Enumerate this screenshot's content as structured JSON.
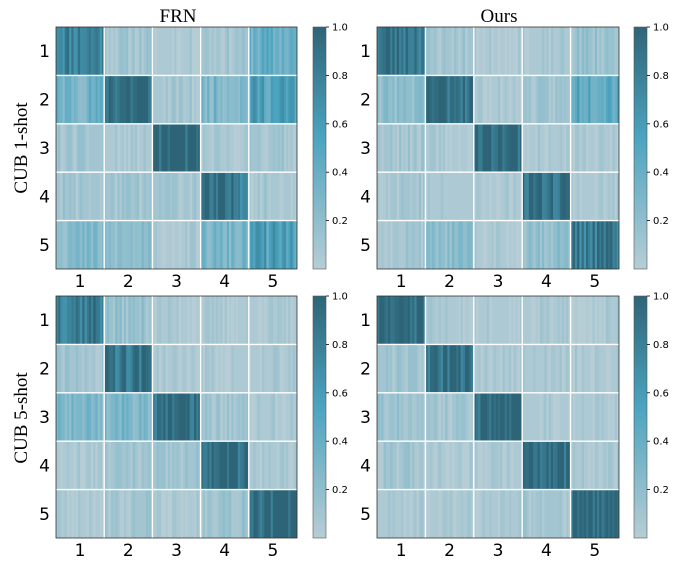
{
  "figure": {
    "column_titles": [
      "FRN",
      "Ours"
    ],
    "row_titles": [
      "CUB 1-shot",
      "CUB 5-shot"
    ]
  },
  "colors": {
    "low": "#b7cdd5",
    "mid": "#4aa3bf",
    "high": "#2e6477",
    "grid": "#ffffff"
  },
  "chart_data": [
    {
      "type": "heatmap",
      "title": "FRN",
      "ylabel": "CUB 1-shot",
      "categories": [
        "1",
        "2",
        "3",
        "4",
        "5"
      ],
      "colorbar": {
        "min": 0,
        "max": 1.0,
        "ticks": [
          "0.2",
          "0.4",
          "0.6",
          "0.8",
          "1.0"
        ]
      },
      "values": [
        [
          0.8,
          0.1,
          0.05,
          0.1,
          0.4
        ],
        [
          0.35,
          0.95,
          0.08,
          0.3,
          0.55
        ],
        [
          0.1,
          0.05,
          1.0,
          0.05,
          0.1
        ],
        [
          0.1,
          0.1,
          0.1,
          0.85,
          0.08
        ],
        [
          0.25,
          0.2,
          0.05,
          0.3,
          0.55
        ]
      ],
      "stripe_seed": 11
    },
    {
      "type": "heatmap",
      "title": "Ours",
      "ylabel": "",
      "categories": [
        "1",
        "2",
        "3",
        "4",
        "5"
      ],
      "colorbar": {
        "min": 0,
        "max": 1.0,
        "ticks": [
          "0.2",
          "0.4",
          "0.6",
          "0.8",
          "1.0"
        ]
      },
      "values": [
        [
          0.9,
          0.1,
          0.05,
          0.05,
          0.15
        ],
        [
          0.2,
          0.95,
          0.05,
          0.1,
          0.5
        ],
        [
          0.1,
          0.05,
          1.0,
          0.05,
          0.05
        ],
        [
          0.1,
          0.05,
          0.05,
          0.95,
          0.05
        ],
        [
          0.1,
          0.2,
          0.05,
          0.2,
          0.85
        ]
      ],
      "stripe_seed": 23
    },
    {
      "type": "heatmap",
      "title": "",
      "ylabel": "CUB 5-shot",
      "categories": [
        "1",
        "2",
        "3",
        "4",
        "5"
      ],
      "colorbar": {
        "min": 0,
        "max": 1.0,
        "ticks": [
          "0.2",
          "0.4",
          "0.6",
          "0.8",
          "1.0"
        ]
      },
      "values": [
        [
          0.85,
          0.15,
          0.05,
          0.05,
          0.05
        ],
        [
          0.1,
          0.9,
          0.05,
          0.05,
          0.05
        ],
        [
          0.3,
          0.3,
          0.95,
          0.1,
          0.05
        ],
        [
          0.05,
          0.1,
          0.1,
          0.95,
          0.05
        ],
        [
          0.05,
          0.1,
          0.05,
          0.15,
          1.0
        ]
      ],
      "stripe_seed": 37
    },
    {
      "type": "heatmap",
      "title": "",
      "ylabel": "",
      "categories": [
        "1",
        "2",
        "3",
        "4",
        "5"
      ],
      "colorbar": {
        "min": 0,
        "max": 1.0,
        "ticks": [
          "0.2",
          "0.4",
          "0.6",
          "0.8",
          "1.0"
        ]
      },
      "values": [
        [
          0.95,
          0.05,
          0.05,
          0.05,
          0.05
        ],
        [
          0.1,
          0.95,
          0.05,
          0.05,
          0.05
        ],
        [
          0.15,
          0.1,
          1.0,
          0.05,
          0.05
        ],
        [
          0.1,
          0.05,
          0.05,
          1.0,
          0.05
        ],
        [
          0.05,
          0.05,
          0.05,
          0.1,
          1.0
        ]
      ],
      "stripe_seed": 51
    }
  ]
}
